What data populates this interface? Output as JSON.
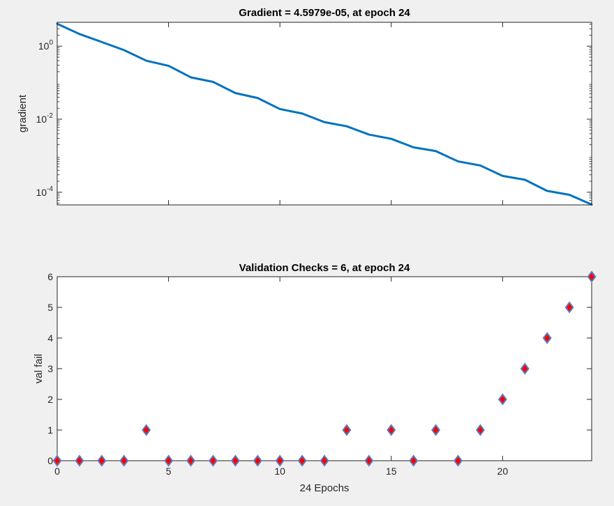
{
  "figure": {
    "background": "#f0f0f0"
  },
  "chart_data": [
    {
      "type": "line",
      "title": "Gradient = 4.5979e-05, at epoch 24",
      "xlabel": "",
      "ylabel": "gradient",
      "yscale": "log",
      "xlim": [
        0,
        24
      ],
      "ylim": [
        4.5e-05,
        4.5
      ],
      "y_ticks": [
        0.0001,
        0.01,
        1
      ],
      "y_tick_labels": [
        {
          "base": "10",
          "exp": "-4"
        },
        {
          "base": "10",
          "exp": "-2"
        },
        {
          "base": "10",
          "exp": "0"
        }
      ],
      "x_ticks": [
        0,
        5,
        10,
        15,
        20
      ],
      "show_x_tick_labels": false,
      "grid": false,
      "line_color": "#0072bd",
      "x": [
        0,
        1,
        2,
        3,
        4,
        5,
        6,
        7,
        8,
        9,
        10,
        11,
        12,
        13,
        14,
        15,
        16,
        17,
        18,
        19,
        20,
        21,
        22,
        23,
        24
      ],
      "y": [
        4.1,
        2.15,
        1.3,
        0.78,
        0.4,
        0.29,
        0.14,
        0.105,
        0.052,
        0.038,
        0.019,
        0.0143,
        0.0083,
        0.0064,
        0.0038,
        0.0029,
        0.0017,
        0.00134,
        0.0007,
        0.00054,
        0.00028,
        0.00022,
        0.000109,
        8.5e-05,
        4.5979e-05
      ]
    },
    {
      "type": "scatter",
      "title": "Validation Checks = 6, at epoch 24",
      "xlabel": "24 Epochs",
      "ylabel": "val fail",
      "xlim": [
        0,
        24
      ],
      "ylim": [
        0,
        6
      ],
      "x_ticks": [
        0,
        5,
        10,
        15,
        20
      ],
      "y_ticks": [
        0,
        1,
        2,
        3,
        4,
        5,
        6
      ],
      "grid": false,
      "marker": "diamond",
      "marker_face_color": "#ff0000",
      "marker_edge_color": "#5b7bc0",
      "x": [
        0,
        1,
        2,
        3,
        4,
        5,
        6,
        7,
        8,
        9,
        10,
        11,
        12,
        13,
        14,
        15,
        16,
        17,
        18,
        19,
        20,
        21,
        22,
        23,
        24
      ],
      "y": [
        0,
        0,
        0,
        0,
        1,
        0,
        0,
        0,
        0,
        0,
        0,
        0,
        0,
        1,
        0,
        1,
        0,
        1,
        0,
        1,
        2,
        3,
        4,
        5,
        6
      ]
    }
  ]
}
